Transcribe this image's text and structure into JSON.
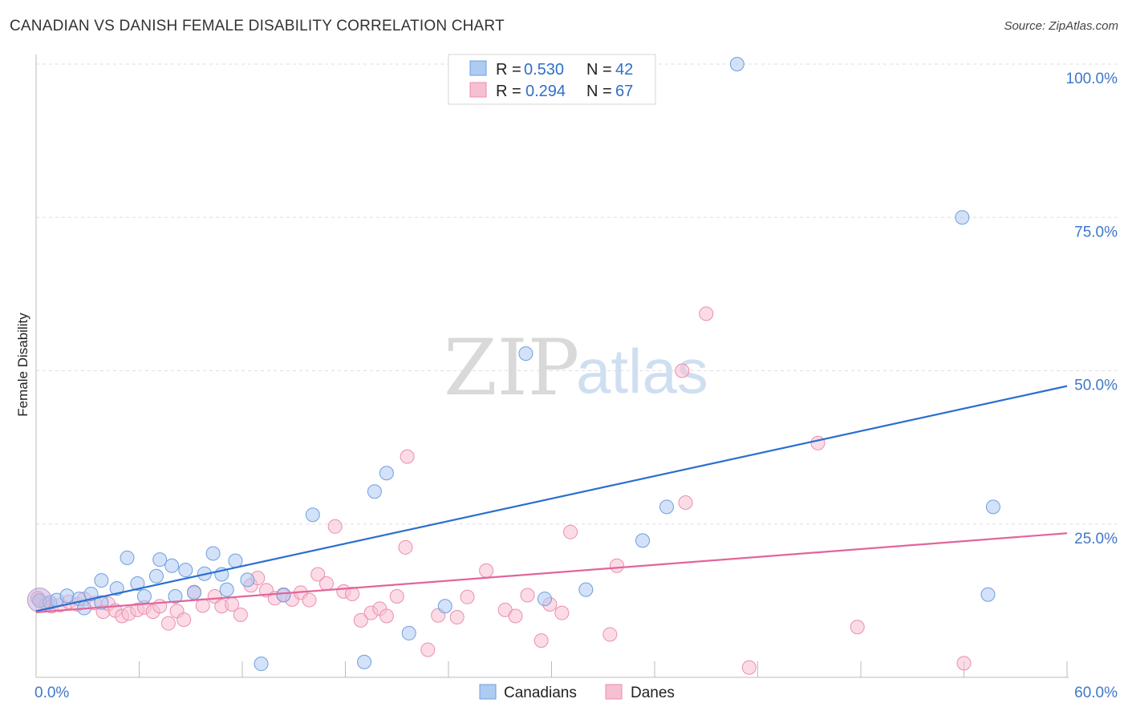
{
  "header": {
    "title": "CANADIAN VS DANISH FEMALE DISABILITY CORRELATION CHART",
    "source": "Source: ZipAtlas.com"
  },
  "watermark": {
    "zip": "ZIP",
    "atlas": "atlas"
  },
  "colors": {
    "canadians_fill": "#aecbf2",
    "canadians_stroke": "#6e9fe0",
    "canadians_line": "#2a6fcf",
    "danes_fill": "#f7bfd2",
    "danes_stroke": "#eb8eae",
    "danes_line": "#e0669a",
    "tick_label": "#3f77c9",
    "grid": "#dddddd"
  },
  "legend": {
    "rows": [
      {
        "r_label": "R = ",
        "r_value": "0.530",
        "n_label": "N = ",
        "n_value": "42"
      },
      {
        "r_label": "R = ",
        "r_value": "0.294",
        "n_label": "N = ",
        "n_value": "67"
      }
    ]
  },
  "chart_data": {
    "type": "scatter",
    "title": "CANADIAN VS DANISH FEMALE DISABILITY CORRELATION CHART",
    "xlabel": "",
    "ylabel": "Female Disability",
    "xlim": [
      0,
      60
    ],
    "ylim": [
      0,
      100
    ],
    "x_tick_labels": [
      "0.0%",
      "60.0%"
    ],
    "y_ticks": [
      25,
      50,
      75,
      100
    ],
    "y_tick_labels": [
      "25.0%",
      "50.0%",
      "75.0%",
      "100.0%"
    ],
    "grid": true,
    "legend_position": "bottom-center",
    "series": [
      {
        "name": "Canadians",
        "r": 0.53,
        "n": 42,
        "trend": [
          [
            0,
            10.8
          ],
          [
            60,
            47.5
          ]
        ],
        "points": [
          [
            0.2,
            12.5
          ],
          [
            0.8,
            12.2
          ],
          [
            1.2,
            12.6
          ],
          [
            1.8,
            13.3
          ],
          [
            2.5,
            12.8
          ],
          [
            2.8,
            11.3
          ],
          [
            3.2,
            13.6
          ],
          [
            3.8,
            12.2
          ],
          [
            3.8,
            15.8
          ],
          [
            4.7,
            14.5
          ],
          [
            5.3,
            19.5
          ],
          [
            5.9,
            15.3
          ],
          [
            6.3,
            13.2
          ],
          [
            7.0,
            16.5
          ],
          [
            7.2,
            19.2
          ],
          [
            7.9,
            18.2
          ],
          [
            8.1,
            13.2
          ],
          [
            8.7,
            17.5
          ],
          [
            9.2,
            13.8
          ],
          [
            9.8,
            16.9
          ],
          [
            10.3,
            20.2
          ],
          [
            10.8,
            16.8
          ],
          [
            11.1,
            14.3
          ],
          [
            11.6,
            19.0
          ],
          [
            12.3,
            15.9
          ],
          [
            13.1,
            2.2
          ],
          [
            14.4,
            13.4
          ],
          [
            16.1,
            26.5
          ],
          [
            19.1,
            2.5
          ],
          [
            19.7,
            30.3
          ],
          [
            20.4,
            33.3
          ],
          [
            21.7,
            7.2
          ],
          [
            23.8,
            11.6
          ],
          [
            28.5,
            52.8
          ],
          [
            29.6,
            12.8
          ],
          [
            32.0,
            14.3
          ],
          [
            35.3,
            22.3
          ],
          [
            36.7,
            27.8
          ],
          [
            40.8,
            100.0
          ],
          [
            53.9,
            75.0
          ],
          [
            55.7,
            27.8
          ],
          [
            55.4,
            13.5
          ]
        ]
      },
      {
        "name": "Danes",
        "r": 0.294,
        "n": 67,
        "trend": [
          [
            0,
            10.6
          ],
          [
            60,
            23.5
          ]
        ],
        "points": [
          [
            0.1,
            12.9
          ],
          [
            0.6,
            12.0
          ],
          [
            0.9,
            11.6
          ],
          [
            1.4,
            11.8
          ],
          [
            1.9,
            12.3
          ],
          [
            2.4,
            11.9
          ],
          [
            2.8,
            12.8
          ],
          [
            3.4,
            12.1
          ],
          [
            3.9,
            10.7
          ],
          [
            4.2,
            12.0
          ],
          [
            4.6,
            10.9
          ],
          [
            5.0,
            10.0
          ],
          [
            5.4,
            10.4
          ],
          [
            5.9,
            11.0
          ],
          [
            6.3,
            11.4
          ],
          [
            6.8,
            10.7
          ],
          [
            7.2,
            11.6
          ],
          [
            7.7,
            8.8
          ],
          [
            8.2,
            10.8
          ],
          [
            8.6,
            9.4
          ],
          [
            9.2,
            13.9
          ],
          [
            9.7,
            11.7
          ],
          [
            10.4,
            13.2
          ],
          [
            10.8,
            11.6
          ],
          [
            11.4,
            11.9
          ],
          [
            11.9,
            10.2
          ],
          [
            12.5,
            15.0
          ],
          [
            12.9,
            16.2
          ],
          [
            13.4,
            14.2
          ],
          [
            13.9,
            12.9
          ],
          [
            14.4,
            13.5
          ],
          [
            14.9,
            12.7
          ],
          [
            15.4,
            13.8
          ],
          [
            15.9,
            12.6
          ],
          [
            16.4,
            16.8
          ],
          [
            16.9,
            15.3
          ],
          [
            17.4,
            24.6
          ],
          [
            17.9,
            14.0
          ],
          [
            18.4,
            13.6
          ],
          [
            18.9,
            9.3
          ],
          [
            19.5,
            10.5
          ],
          [
            20.0,
            11.2
          ],
          [
            20.4,
            10.0
          ],
          [
            21.0,
            13.2
          ],
          [
            21.5,
            21.2
          ],
          [
            21.6,
            36.0
          ],
          [
            22.8,
            4.5
          ],
          [
            23.4,
            10.1
          ],
          [
            24.5,
            9.8
          ],
          [
            25.1,
            13.1
          ],
          [
            26.2,
            17.4
          ],
          [
            27.3,
            11.0
          ],
          [
            27.9,
            10.0
          ],
          [
            28.6,
            13.4
          ],
          [
            29.4,
            6.0
          ],
          [
            29.9,
            11.9
          ],
          [
            30.6,
            10.5
          ],
          [
            31.1,
            23.7
          ],
          [
            33.4,
            7.0
          ],
          [
            33.8,
            18.2
          ],
          [
            37.6,
            50.0
          ],
          [
            37.8,
            28.5
          ],
          [
            39.0,
            59.3
          ],
          [
            41.5,
            1.6
          ],
          [
            45.5,
            38.2
          ],
          [
            47.8,
            8.2
          ],
          [
            54.0,
            2.3
          ]
        ]
      }
    ]
  }
}
